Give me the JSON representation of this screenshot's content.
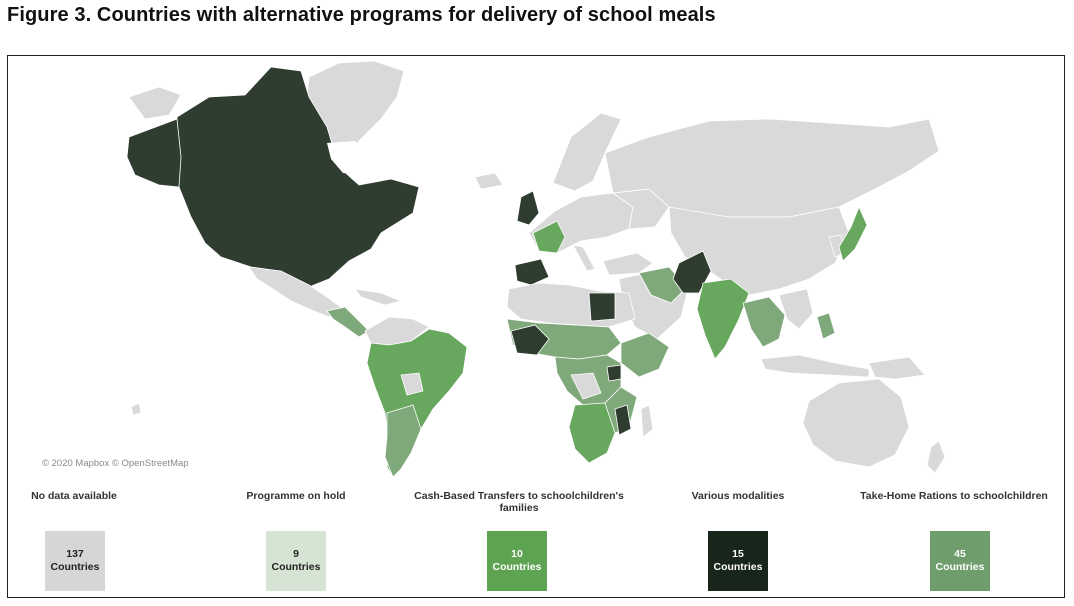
{
  "figure": {
    "title": "Figure 3. Countries with alternative programs for delivery of school meals"
  },
  "map": {
    "attribution": "© 2020 Mapbox © OpenStreetMap",
    "colors": {
      "ocean": "#ffffff",
      "no_data": "#d9d9d9",
      "on_hold": "#c9dcc8",
      "cash_based": "#67a85e",
      "various": "#2b3a2b",
      "take_home": "#7fa87b",
      "border": "#ffffff"
    }
  },
  "legend": [
    {
      "label": "No data available",
      "count": "137",
      "unit": "Countries",
      "color": "#d6d6d6",
      "text_color": "#222222"
    },
    {
      "label": "Programme on hold",
      "count": "9",
      "unit": "Countries",
      "color": "#d6e5d3",
      "text_color": "#222222"
    },
    {
      "label": "Cash-Based Transfers to schoolchildren's families",
      "count": "10",
      "unit": "Countries",
      "color": "#5ea352",
      "text_color": "#ffffff"
    },
    {
      "label": "Various modalities",
      "count": "15",
      "unit": "Countries",
      "color": "#17251a",
      "text_color": "#ffffff"
    },
    {
      "label": "Take-Home Rations to schoolchildren",
      "count": "45",
      "unit": "Countries",
      "color": "#709d6c",
      "text_color": "#ffffff"
    }
  ]
}
